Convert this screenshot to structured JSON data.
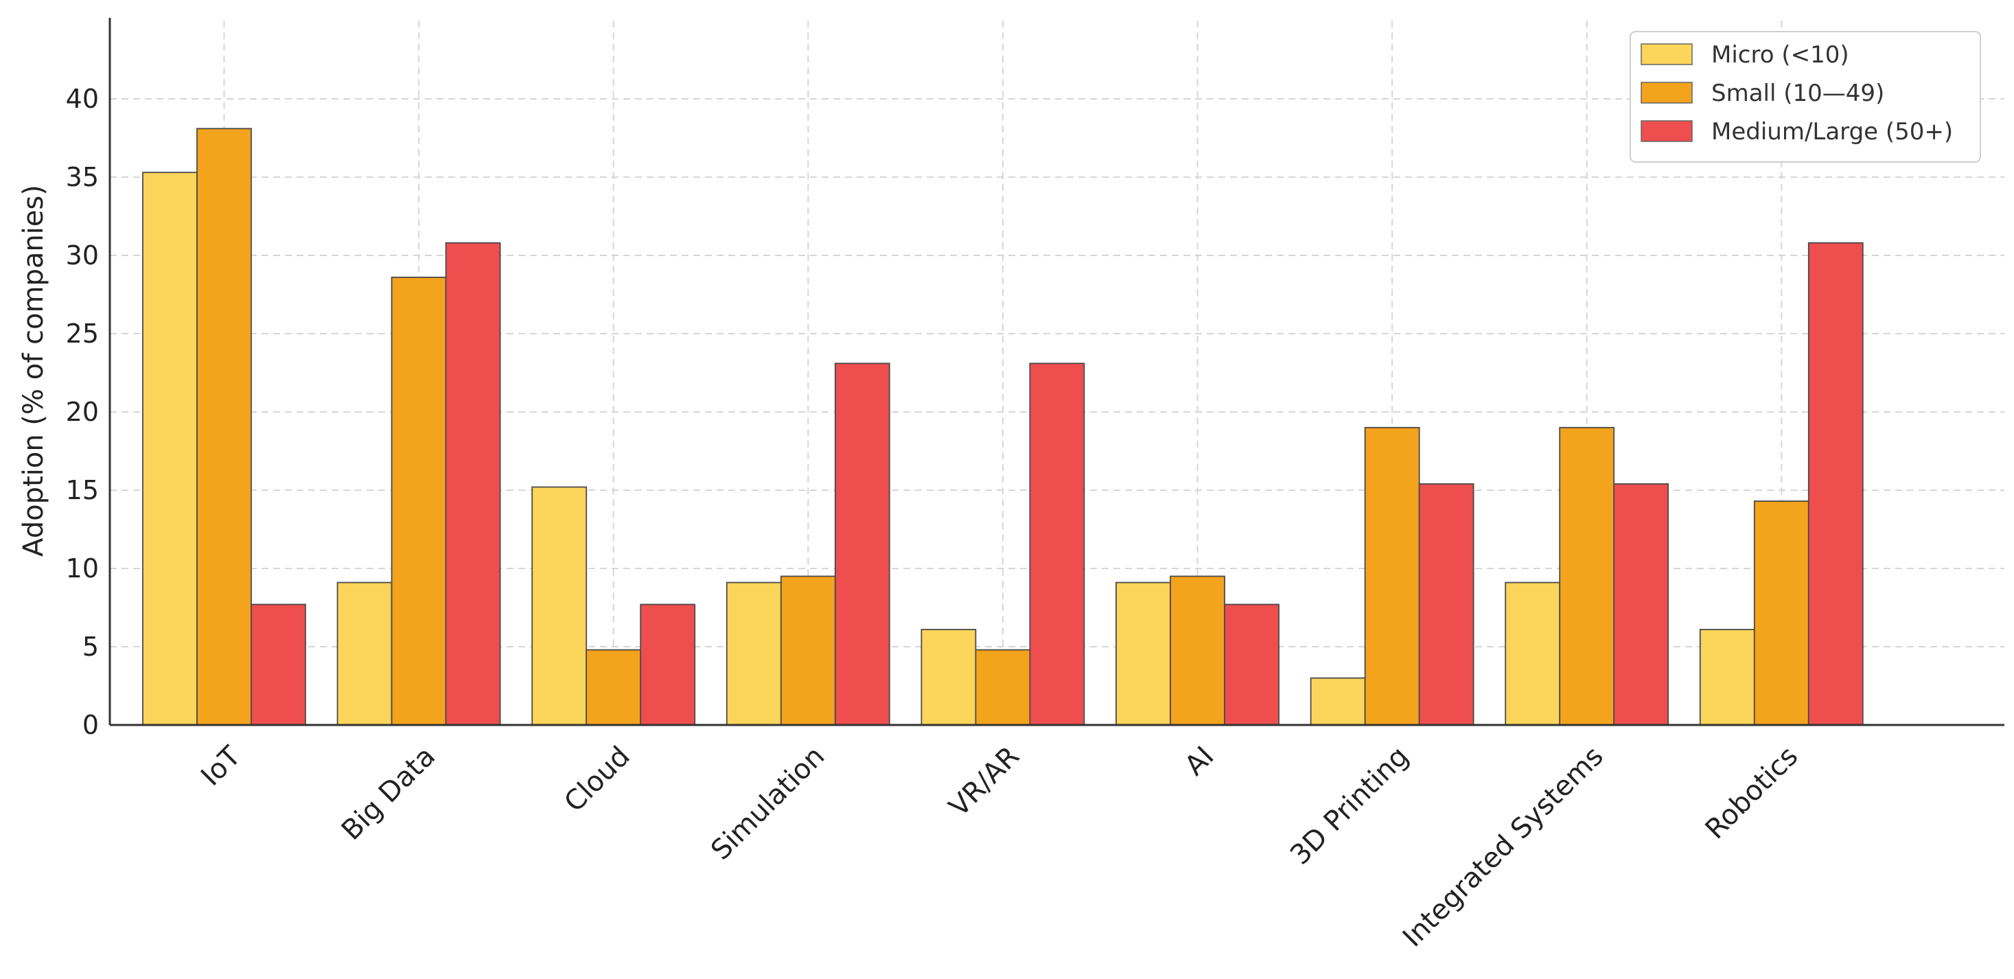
{
  "chart_data": {
    "type": "bar",
    "categories": [
      "IoT",
      "Big Data",
      "Cloud",
      "Simulation",
      "VR/AR",
      "AI",
      "3D Printing",
      "Integrated Systems",
      "Robotics"
    ],
    "series": [
      {
        "name": "Micro (<10)",
        "color": "#FCD55B",
        "values": [
          35.3,
          9.1,
          15.2,
          9.1,
          6.1,
          9.1,
          3.0,
          9.1,
          6.1
        ]
      },
      {
        "name": "Small (10—49)",
        "color": "#F4A31D",
        "values": [
          38.1,
          28.6,
          4.8,
          9.5,
          4.8,
          9.5,
          19.0,
          19.0,
          14.3
        ]
      },
      {
        "name": "Medium/Large (50+)",
        "color": "#EE4E4E",
        "values": [
          7.7,
          30.8,
          7.7,
          23.1,
          23.1,
          7.7,
          15.4,
          15.4,
          30.8
        ]
      }
    ],
    "title": "",
    "xlabel": "",
    "ylabel": "Adoption (% of companies)",
    "ylim": [
      0,
      45
    ],
    "yticks": [
      0,
      5,
      10,
      15,
      20,
      25,
      30,
      35,
      40
    ],
    "grid": true,
    "legend": "top-right"
  }
}
